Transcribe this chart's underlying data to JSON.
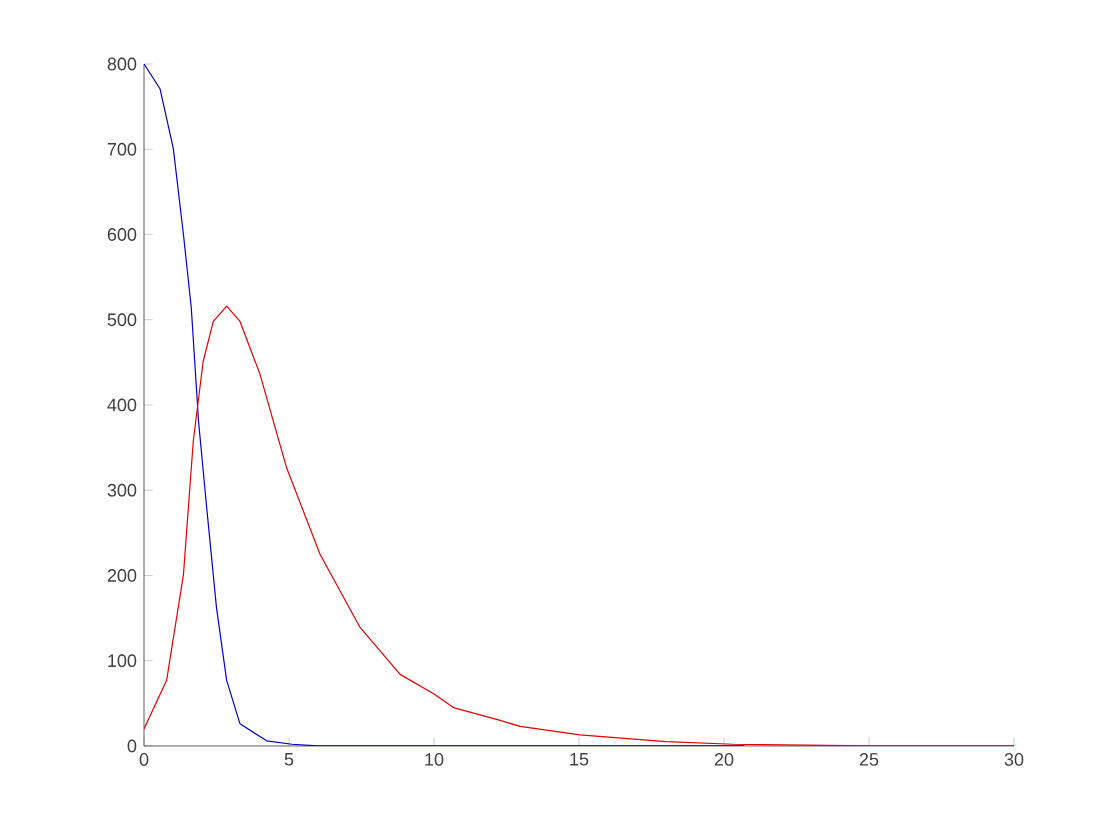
{
  "chart_data": {
    "type": "line",
    "xlim": [
      0,
      30
    ],
    "ylim": [
      0,
      800
    ],
    "xticks": [
      0,
      5,
      10,
      15,
      20,
      25,
      30
    ],
    "yticks": [
      0,
      100,
      200,
      300,
      400,
      500,
      600,
      700,
      800
    ],
    "grid": false,
    "marker": "none",
    "line_style": "solid",
    "series": [
      {
        "color": "#0000c0",
        "x": [
          0,
          0.55,
          1.01,
          1.36,
          1.63,
          1.88,
          2.16,
          2.5,
          2.85,
          3.31,
          4.23,
          5.1,
          6,
          8,
          10,
          15,
          20.7
        ],
        "values": [
          800,
          771,
          701,
          600,
          514,
          381,
          280,
          162,
          77,
          26,
          6,
          2,
          0,
          0,
          0,
          0,
          0
        ]
      },
      {
        "color": "#e00000",
        "x": [
          0,
          0.78,
          1.36,
          1.7,
          2.04,
          2.39,
          2.85,
          3.31,
          4.0,
          4.92,
          6.07,
          7.45,
          8.83,
          10,
          10.67,
          12.28,
          12.97,
          15.03,
          18,
          20.3,
          25,
          30
        ],
        "values": [
          20,
          77,
          201,
          358,
          451,
          498,
          516,
          498,
          436,
          326,
          225,
          139,
          84,
          61,
          45,
          30,
          23,
          13,
          5,
          2,
          0,
          0
        ]
      }
    ]
  }
}
